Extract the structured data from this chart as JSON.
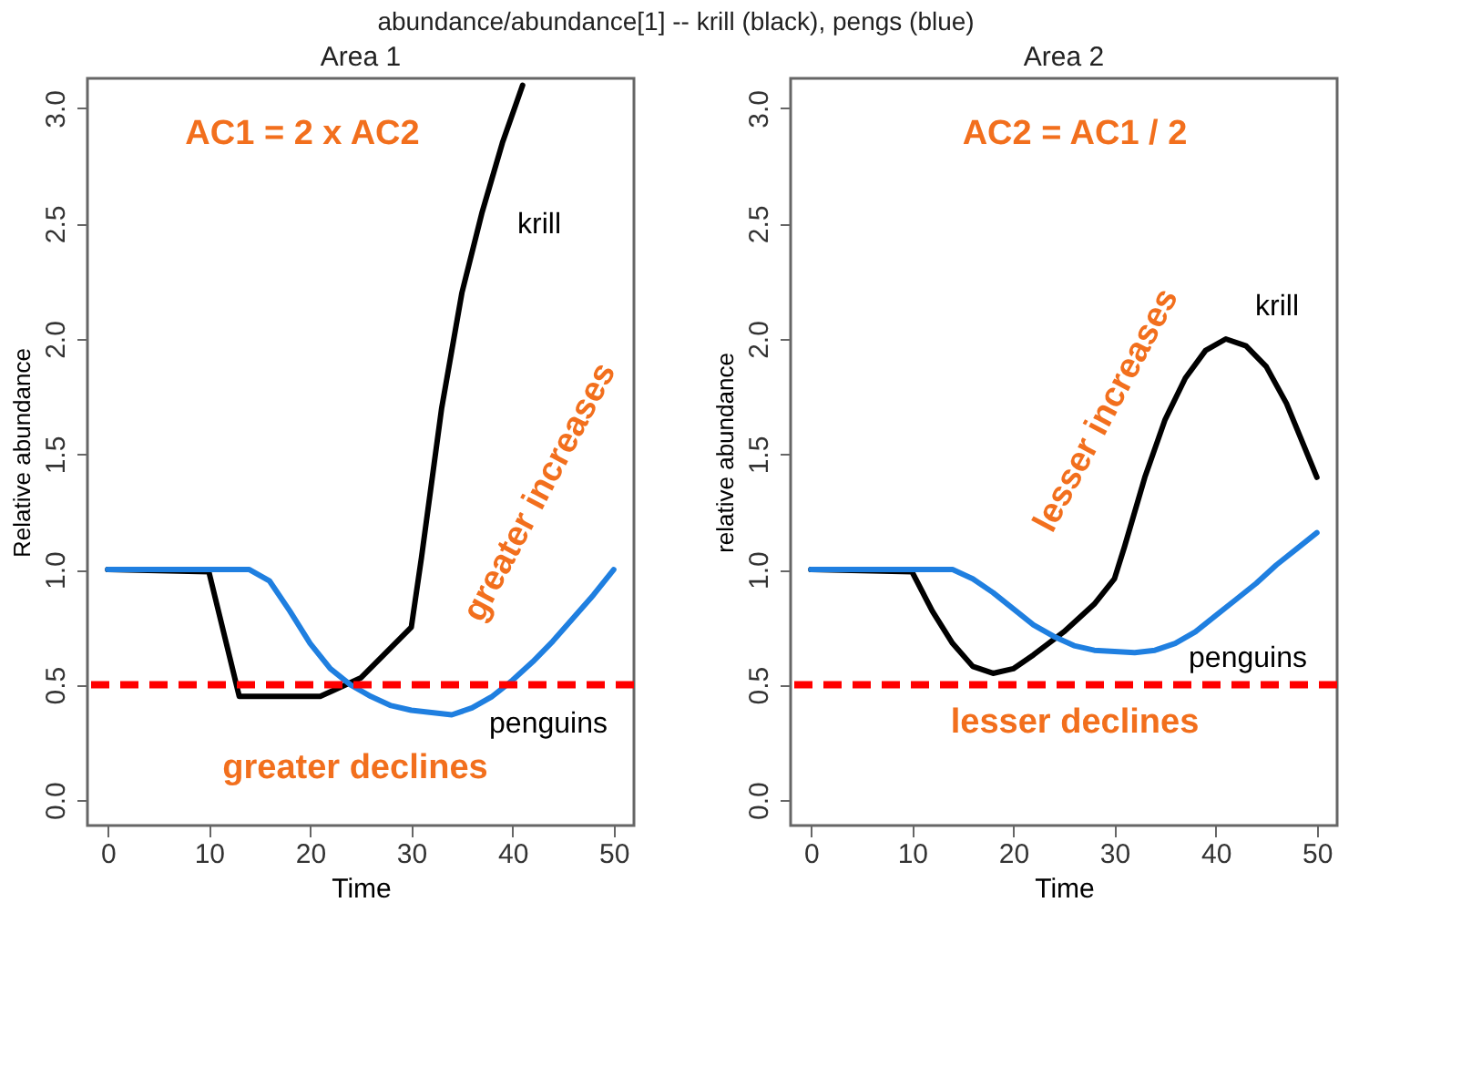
{
  "chart_data": [
    {
      "type": "line",
      "title": "Area 1",
      "xlabel": "Time",
      "ylabel": "Relative abundance",
      "xlim": [
        -2,
        52
      ],
      "ylim": [
        -0.11,
        3.13
      ],
      "xticks": [
        0,
        10,
        20,
        30,
        40,
        50
      ],
      "yticks": [
        {
          "value": 0,
          "label": "0.0"
        },
        {
          "value": 0.5,
          "label": "0.5"
        },
        {
          "value": 1,
          "label": "1.0"
        },
        {
          "value": 1.5,
          "label": "1.5"
        },
        {
          "value": 2,
          "label": "2.0"
        },
        {
          "value": 2.5,
          "label": "2.5"
        },
        {
          "value": 3,
          "label": "3.0"
        }
      ],
      "grid": false,
      "line_style": "solid",
      "marker": "none",
      "series": [
        {
          "name": "krill",
          "color": "#000000",
          "x": [
            0,
            10,
            13,
            21,
            22,
            25,
            30,
            31,
            33,
            35,
            37,
            39,
            41
          ],
          "values": [
            1.0,
            0.99,
            0.45,
            0.45,
            0.47,
            0.53,
            0.75,
            1.05,
            1.7,
            2.2,
            2.55,
            2.85,
            3.1
          ]
        },
        {
          "name": "penguins",
          "color": "#1f7fe0",
          "x": [
            0,
            14,
            16,
            18,
            20,
            22,
            24,
            26,
            28,
            30,
            34,
            36,
            38,
            40,
            42,
            44,
            46,
            48,
            50
          ],
          "values": [
            1.0,
            1.0,
            0.95,
            0.82,
            0.68,
            0.57,
            0.5,
            0.45,
            0.41,
            0.39,
            0.37,
            0.4,
            0.45,
            0.52,
            0.6,
            0.69,
            0.79,
            0.89,
            1.0
          ]
        }
      ],
      "ref_lines": [
        {
          "axis": "y",
          "value": 0.5,
          "color": "#ff0000",
          "line_style": "dashed"
        }
      ],
      "annotations": [
        "AC1 = 2 x AC2",
        "greater increases",
        "greater declines"
      ]
    },
    {
      "type": "line",
      "title": "Area 2",
      "xlabel": "Time",
      "ylabel": "relative abundance",
      "xlim": [
        -2,
        52
      ],
      "ylim": [
        -0.11,
        3.13
      ],
      "xticks": [
        0,
        10,
        20,
        30,
        40,
        50
      ],
      "yticks": [
        {
          "value": 0,
          "label": "0.0"
        },
        {
          "value": 0.5,
          "label": "0.5"
        },
        {
          "value": 1,
          "label": "1.0"
        },
        {
          "value": 1.5,
          "label": "1.5"
        },
        {
          "value": 2,
          "label": "2.0"
        },
        {
          "value": 2.5,
          "label": "2.5"
        },
        {
          "value": 3,
          "label": "3.0"
        }
      ],
      "grid": false,
      "line_style": "solid",
      "marker": "none",
      "series": [
        {
          "name": "krill",
          "color": "#000000",
          "x": [
            0,
            10,
            12,
            14,
            16,
            18,
            20,
            22,
            25,
            28,
            30,
            31,
            33,
            35,
            37,
            39,
            41,
            43,
            45,
            47,
            50
          ],
          "values": [
            1.0,
            0.99,
            0.82,
            0.68,
            0.58,
            0.55,
            0.57,
            0.63,
            0.73,
            0.85,
            0.96,
            1.1,
            1.4,
            1.65,
            1.83,
            1.95,
            2.0,
            1.97,
            1.88,
            1.72,
            1.4
          ]
        },
        {
          "name": "penguins",
          "color": "#1f7fe0",
          "x": [
            0,
            14,
            16,
            18,
            20,
            22,
            24,
            26,
            28,
            32,
            34,
            36,
            38,
            40,
            42,
            44,
            46,
            48,
            50
          ],
          "values": [
            1.0,
            1.0,
            0.96,
            0.9,
            0.83,
            0.76,
            0.71,
            0.67,
            0.65,
            0.64,
            0.65,
            0.68,
            0.73,
            0.8,
            0.87,
            0.94,
            1.02,
            1.09,
            1.16
          ]
        }
      ],
      "ref_lines": [
        {
          "axis": "y",
          "value": 0.5,
          "color": "#ff0000",
          "line_style": "dashed"
        }
      ],
      "annotations": [
        "AC2 = AC1 / 2",
        "lesser increases",
        "lesser declines"
      ]
    },
    {
      "type": "other",
      "annotations": [
        "abundance/abundance[1] -- krill (black), pengs (blue)"
      ]
    }
  ]
}
